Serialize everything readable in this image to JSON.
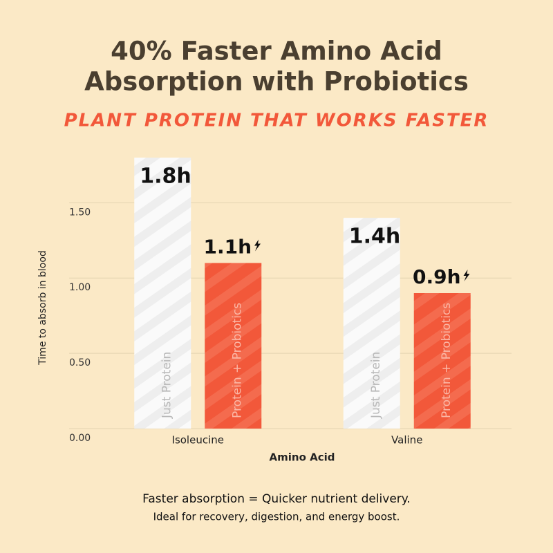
{
  "chart_data": {
    "type": "bar",
    "title": [
      "40% Faster Amino Acid",
      "Absorption with Probiotics"
    ],
    "subtitle": "PLANT PROTEIN THAT WORKS FASTER",
    "x_label": "Amino Acid",
    "y_label": "Time to absorb in blood",
    "categories": [
      "Isoleucine",
      "Valine"
    ],
    "series": [
      {
        "name": "Just Protein",
        "color": "#fafafa",
        "values": [
          1.8,
          1.4
        ],
        "value_labels": [
          "1.8h",
          "1.4h"
        ]
      },
      {
        "name": "Protein + Probiotics",
        "color": "#f2583a",
        "values": [
          1.1,
          0.9
        ],
        "value_labels": [
          "1.1h",
          "0.9h"
        ]
      }
    ],
    "ylim": [
      0,
      1.8
    ],
    "yticks": [
      {
        "value": 0,
        "label": "0.00"
      },
      {
        "value": 0.5,
        "label": "0.50"
      },
      {
        "value": 1,
        "label": "1.00"
      },
      {
        "value": 1.5,
        "label": "1.50"
      }
    ],
    "grid": true,
    "footnote": [
      "Faster absorption = Quicker nutrient delivery.",
      "Ideal for recovery, digestion, and energy boost."
    ]
  }
}
